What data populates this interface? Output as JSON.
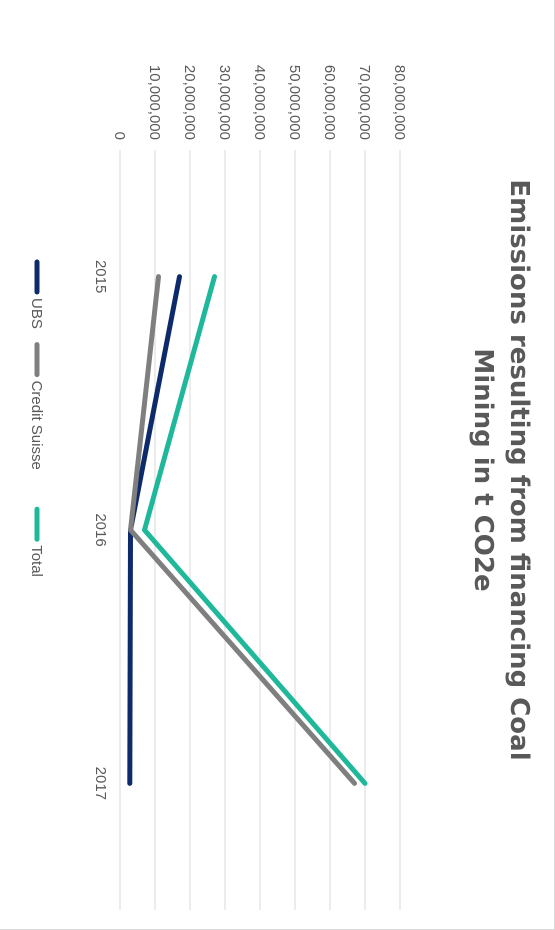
{
  "chart_data": {
    "type": "line",
    "title": "Emissions resulting from financing Coal Mining in t CO2e",
    "categories": [
      "2015",
      "2016",
      "2017"
    ],
    "ylim": [
      0,
      80000000
    ],
    "y_ticks": [
      "0",
      "10,000,000",
      "20,000,000",
      "30,000,000",
      "40,000,000",
      "50,000,000",
      "60,000,000",
      "70,000,000",
      "80,000,000"
    ],
    "grid": true,
    "legend_position": "bottom",
    "series": [
      {
        "name": "UBS",
        "color": "#0d2a6b",
        "values": [
          17000000,
          3000000,
          2800000
        ]
      },
      {
        "name": "Credit Suisse",
        "color": "#7f7f7f",
        "values": [
          11000000,
          3000000,
          67000000
        ]
      },
      {
        "name": "Total",
        "color": "#1fb89a",
        "values": [
          27000000,
          7000000,
          70000000
        ]
      }
    ]
  }
}
